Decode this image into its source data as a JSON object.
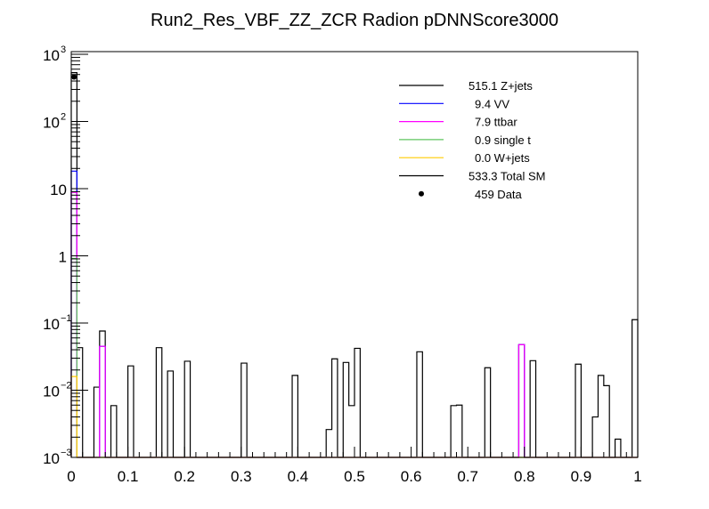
{
  "chart_data": {
    "type": "bar",
    "subtype": "stacked-step-histogram-logy",
    "title": "Run2_Res_VBF_ZZ_ZCR Radion  pDNNScore3000",
    "xlabel": "",
    "ylabel": "",
    "xlim": [
      0,
      1
    ],
    "ylim": [
      0.001,
      1000
    ],
    "yscale": "log",
    "bin_width": 0.01,
    "x_ticks": [
      "0",
      "0.1",
      "0.2",
      "0.3",
      "0.4",
      "0.5",
      "0.6",
      "0.7",
      "0.8",
      "0.9",
      "1"
    ],
    "y_ticks": [
      {
        "base": "10",
        "exp": "3"
      },
      {
        "base": "10",
        "exp": "2"
      },
      {
        "base": "10",
        "exp": ""
      },
      {
        "base": "1",
        "exp": ""
      },
      {
        "base": "10",
        "exp": "−1"
      },
      {
        "base": "10",
        "exp": "−2"
      },
      {
        "base": "10",
        "exp": "−3"
      }
    ],
    "legend_position": "top-right",
    "series": [
      {
        "name": "Z+jets",
        "legend": "515.1 Z+jets",
        "color": "#000000",
        "bins": [
          [
            0.0,
            515.1
          ],
          [
            0.01,
            0.043
          ],
          [
            0.04,
            0.0111
          ],
          [
            0.05,
            0.031
          ],
          [
            0.07,
            0.0059
          ],
          [
            0.1,
            0.023
          ],
          [
            0.15,
            0.043
          ],
          [
            0.17,
            0.0193
          ],
          [
            0.2,
            0.027
          ],
          [
            0.3,
            0.0253
          ],
          [
            0.39,
            0.0166
          ],
          [
            0.45,
            0.0026
          ],
          [
            0.46,
            0.0293
          ],
          [
            0.48,
            0.0259
          ],
          [
            0.49,
            0.0059
          ],
          [
            0.5,
            0.042
          ],
          [
            0.61,
            0.0373
          ],
          [
            0.67,
            0.0059
          ],
          [
            0.68,
            0.006
          ],
          [
            0.73,
            0.0216
          ],
          [
            0.81,
            0.0275
          ],
          [
            0.89,
            0.0244
          ],
          [
            0.92,
            0.004
          ],
          [
            0.93,
            0.0166
          ],
          [
            0.94,
            0.0117
          ],
          [
            0.96,
            0.00187
          ],
          [
            0.99,
            0.112
          ]
        ]
      },
      {
        "name": "VV",
        "legend": "9.4 VV",
        "color": "#0000ff",
        "bins": [
          [
            0.0,
            9.4
          ]
        ]
      },
      {
        "name": "ttbar",
        "legend": "7.9 ttbar",
        "color": "#ff00ff",
        "bins": [
          [
            0.0,
            7.9
          ],
          [
            0.05,
            0.045
          ],
          [
            0.79,
            0.0476
          ]
        ]
      },
      {
        "name": "single t",
        "legend": "0.9 single t",
        "color": "#5fc65f",
        "bins": [
          [
            0.0,
            0.9
          ]
        ]
      },
      {
        "name": "W+jets",
        "legend": "0.0 W+jets",
        "color": "#ffcc00",
        "bins": [
          [
            0.0,
            0.016
          ]
        ]
      },
      {
        "name": "Total SM",
        "legend": "533.3 Total SM",
        "color": "#000000",
        "total": true
      },
      {
        "name": "Data",
        "legend": "459 Data",
        "color": "#000000",
        "marker": true,
        "points": [
          [
            0.005,
            459
          ]
        ]
      }
    ]
  }
}
